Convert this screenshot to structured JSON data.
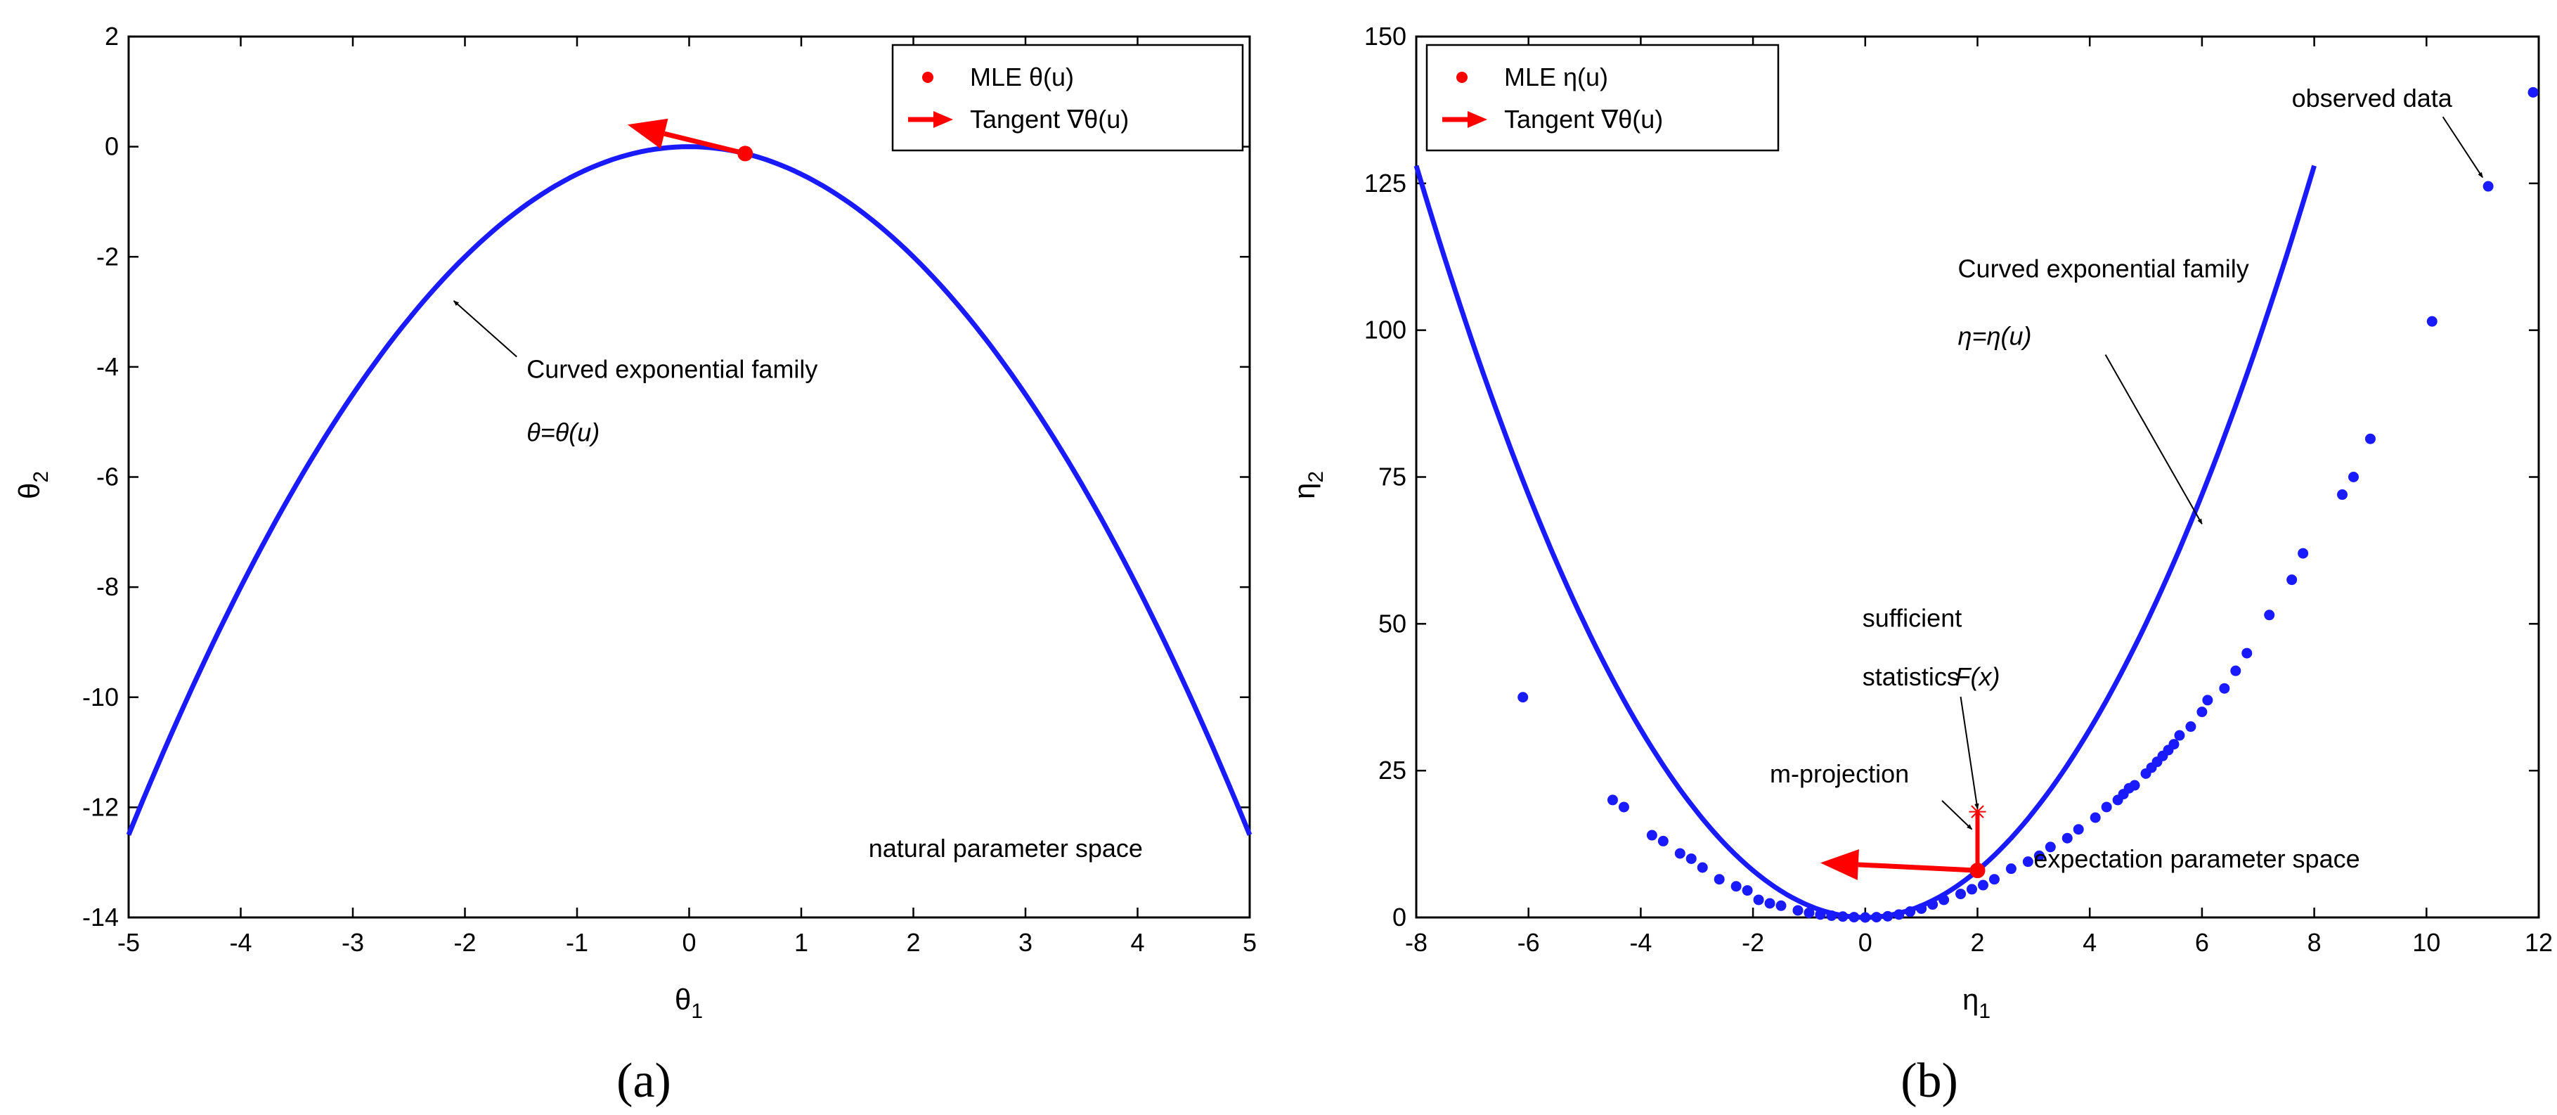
{
  "colors": {
    "curve": "#1a1aff",
    "data_points": "#1a1aff",
    "mle": "#ff0000",
    "tangent": "#ff0000",
    "axis": "#000000",
    "annotation": "#000000"
  },
  "chart_data": [
    {
      "type": "line",
      "caption": "(a)",
      "xlabel": "θ",
      "xlabel_sub": "1",
      "ylabel": "θ",
      "ylabel_sub": "2",
      "xlim": [
        -5,
        5
      ],
      "ylim": [
        -14,
        2
      ],
      "grid": false,
      "xticks": [
        -5,
        -4,
        -3,
        -2,
        -1,
        0,
        1,
        2,
        3,
        4,
        5
      ],
      "yticks": [
        -14,
        -12,
        -10,
        -8,
        -6,
        -4,
        -2,
        0,
        2
      ],
      "series": [
        {
          "name": "Curved exponential family",
          "formula": "θ2 = -θ1^2 / 2",
          "x": [
            -5,
            -4.5,
            -4,
            -3.5,
            -3,
            -2.5,
            -2,
            -1.5,
            -1,
            -0.5,
            0,
            0.5,
            1,
            1.5,
            2,
            2.5,
            3,
            3.5,
            4,
            4.5,
            5
          ],
          "y": [
            -12.5,
            -10.125,
            -8,
            -6.125,
            -4.5,
            -3.125,
            -2,
            -1.125,
            -0.5,
            -0.125,
            0,
            -0.125,
            -0.5,
            -1.125,
            -2,
            -3.125,
            -4.5,
            -6.125,
            -8,
            -10.125,
            -12.5
          ]
        }
      ],
      "mle_point": {
        "x": 0.5,
        "y": -0.125
      },
      "tangent": {
        "from": [
          0.5,
          -0.125
        ],
        "to": [
          -0.55,
          0.4
        ]
      },
      "legend": {
        "position": "top-right",
        "entries": [
          {
            "label": "MLE θ(u)",
            "marker": "dot"
          },
          {
            "label": "Tangent ∇θ(u)",
            "marker": "arrow"
          }
        ]
      },
      "annotations": [
        {
          "text": "Curved exponential family",
          "text_xy": [
            -1.45,
            -4.2
          ],
          "arrow_to": [
            -2.1,
            -2.8
          ]
        },
        {
          "text": "θ=θ(u)",
          "text_xy": [
            -1.45,
            -5.35
          ],
          "italic": true
        },
        {
          "text": "natural parameter space",
          "text_xy": [
            1.6,
            -12.9
          ]
        }
      ]
    },
    {
      "type": "scatter",
      "caption": "(b)",
      "xlabel": "η",
      "xlabel_sub": "1",
      "ylabel": "η",
      "ylabel_sub": "2",
      "xlim": [
        -8,
        12
      ],
      "ylim": [
        0,
        150
      ],
      "grid": false,
      "xticks": [
        -8,
        -6,
        -4,
        -2,
        0,
        2,
        4,
        6,
        8,
        10,
        12
      ],
      "yticks": [
        0,
        25,
        50,
        75,
        100,
        125,
        150
      ],
      "series": [
        {
          "name": "Curved exponential family",
          "formula": "η2 = 2 * η1^2",
          "x": [
            -8,
            -7,
            -6,
            -5,
            -4,
            -3,
            -2,
            -1,
            0,
            1,
            2,
            3,
            4,
            5,
            6,
            7,
            8
          ],
          "y": [
            128,
            98,
            72,
            50,
            32,
            18,
            8,
            2,
            0,
            2,
            8,
            18,
            32,
            50,
            72,
            98,
            128
          ]
        },
        {
          "name": "observed data",
          "x": [
            -6.1,
            -4.5,
            -4.3,
            -3.8,
            -3.6,
            -3.3,
            -3.1,
            -2.9,
            -2.6,
            -2.3,
            -2.1,
            -1.9,
            -1.7,
            -1.5,
            -1.2,
            -1.0,
            -0.8,
            -0.6,
            -0.4,
            -0.2,
            0.0,
            0.2,
            0.4,
            0.6,
            0.8,
            1.0,
            1.2,
            1.4,
            1.7,
            1.9,
            2.1,
            2.3,
            2.6,
            2.9,
            3.1,
            3.3,
            3.6,
            3.8,
            4.1,
            4.3,
            4.5,
            4.6,
            4.7,
            4.8,
            5.0,
            5.1,
            5.2,
            5.3,
            5.4,
            5.5,
            5.6,
            5.8,
            6.0,
            6.1,
            6.4,
            6.6,
            6.8,
            7.2,
            7.6,
            7.8,
            8.5,
            8.7,
            9.0,
            10.1,
            11.1,
            11.9
          ],
          "y": [
            37.5,
            20,
            18.8,
            14,
            13,
            10.9,
            10,
            8.5,
            6.5,
            5.3,
            4.6,
            3,
            2.4,
            2,
            1.2,
            0.8,
            0.5,
            0.3,
            0.15,
            0.05,
            0,
            0.05,
            0.2,
            0.5,
            1,
            1.5,
            2.2,
            3,
            4,
            4.8,
            5.5,
            6.5,
            8.3,
            9.5,
            10.5,
            12,
            13.5,
            15,
            17,
            18.8,
            20,
            21,
            22,
            22.5,
            24.5,
            25.5,
            26.5,
            27.5,
            28.5,
            29.5,
            31,
            32.5,
            35,
            37,
            39,
            42,
            45,
            51.5,
            57.5,
            62,
            72,
            75,
            81.5,
            101.5,
            124.5,
            140.5
          ]
        }
      ],
      "mle_point": {
        "x": 2,
        "y": 8
      },
      "sufficient_statistics_point": {
        "x": 2,
        "y": 18
      },
      "m_projection": {
        "from": [
          2,
          18
        ],
        "to": [
          2,
          8
        ]
      },
      "tangent": {
        "from": [
          2,
          8
        ],
        "to": [
          -0.8,
          9.3
        ]
      },
      "legend": {
        "position": "top-left",
        "entries": [
          {
            "label": "MLE η(u)",
            "marker": "dot"
          },
          {
            "label": "Tangent ∇θ(u)",
            "marker": "arrow"
          }
        ]
      },
      "annotations": [
        {
          "text": "observed data",
          "text_xy": [
            7.6,
            138
          ],
          "arrow_to": [
            11.0,
            126
          ]
        },
        {
          "text": "Curved exponential family",
          "text_xy": [
            1.65,
            109
          ],
          "arrow_to": [
            6.0,
            67
          ]
        },
        {
          "text": "η=η(u)",
          "text_xy": [
            1.65,
            97.5
          ],
          "italic": true
        },
        {
          "text": "sufficient",
          "text_xy": [
            -0.05,
            49.5
          ]
        },
        {
          "text": "statistics",
          "text_xy": [
            -0.05,
            39.5
          ]
        },
        {
          "text": "F(x)",
          "text_xy": [
            1.6,
            39.5
          ],
          "italic": true,
          "arrow_to": [
            2,
            18.5
          ]
        },
        {
          "text": "m-projection",
          "text_xy": [
            -1.7,
            23
          ],
          "arrow_to": [
            1.9,
            15
          ]
        },
        {
          "text": "expectation parameter space",
          "text_xy": [
            3.0,
            8.5
          ]
        }
      ]
    }
  ]
}
